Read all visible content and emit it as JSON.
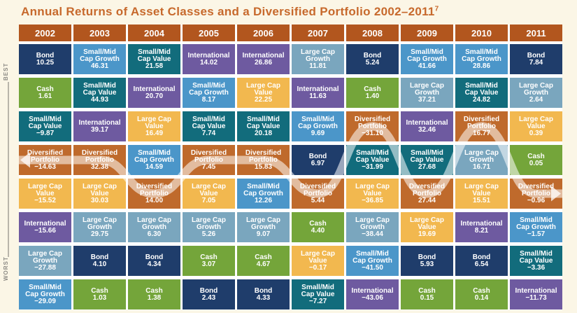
{
  "title": "Annual Returns of Asset Classes and a Diversified Portfolio 2002–2011",
  "title_footnote": "7",
  "side": {
    "best": "BEST",
    "worst": "WORST"
  },
  "colors": {
    "Bond": "#1f3d6b",
    "Cash": "#74a53a",
    "Small/Mid Cap Value": "#126c7c",
    "Small/Mid Cap Growth": "#4b96c9",
    "International": "#6e5aa0",
    "Large Cap Value": "#f2b84f",
    "Large Cap Growth": "#7aa6be",
    "Diversified Portfolio": "#bf6a2c"
  },
  "chart_data": {
    "type": "table",
    "title": "Annual Returns of Asset Classes and a Diversified Portfolio 2002–2011",
    "rank_labels": [
      "BEST",
      "WORST"
    ],
    "years": [
      {
        "year": "2002",
        "cells": [
          {
            "name": "Bond",
            "value": "10.25"
          },
          {
            "name": "Cash",
            "value": "1.61"
          },
          {
            "name": "Small/Mid Cap Value",
            "value": "−9.87"
          },
          {
            "name": "Diversified Portfolio",
            "value": "−14.63"
          },
          {
            "name": "Large Cap Value",
            "value": "−15.52"
          },
          {
            "name": "International",
            "value": "−15.66"
          },
          {
            "name": "Large Cap Growth",
            "value": "−27.88"
          },
          {
            "name": "Small/Mid Cap Growth",
            "value": "−29.09"
          }
        ]
      },
      {
        "year": "2003",
        "cells": [
          {
            "name": "Small/Mid Cap Growth",
            "value": "46.31"
          },
          {
            "name": "Small/Mid Cap Value",
            "value": "44.93"
          },
          {
            "name": "International",
            "value": "39.17"
          },
          {
            "name": "Diversified Portfolio",
            "value": "32.38"
          },
          {
            "name": "Large Cap Value",
            "value": "30.03"
          },
          {
            "name": "Large Cap Growth",
            "value": "29.75"
          },
          {
            "name": "Bond",
            "value": "4.10"
          },
          {
            "name": "Cash",
            "value": "1.03"
          }
        ]
      },
      {
        "year": "2004",
        "cells": [
          {
            "name": "Small/Mid Cap Value",
            "value": "21.58"
          },
          {
            "name": "International",
            "value": "20.70"
          },
          {
            "name": "Large Cap Value",
            "value": "16.49"
          },
          {
            "name": "Small/Mid Cap Growth",
            "value": "14.59"
          },
          {
            "name": "Diversified Portfolio",
            "value": "14.00"
          },
          {
            "name": "Large Cap Growth",
            "value": "6.30"
          },
          {
            "name": "Bond",
            "value": "4.34"
          },
          {
            "name": "Cash",
            "value": "1.38"
          }
        ]
      },
      {
        "year": "2005",
        "cells": [
          {
            "name": "International",
            "value": "14.02"
          },
          {
            "name": "Small/Mid Cap Growth",
            "value": "8.17"
          },
          {
            "name": "Small/Mid Cap Value",
            "value": "7.74"
          },
          {
            "name": "Diversified Portfolio",
            "value": "7.45"
          },
          {
            "name": "Large Cap Value",
            "value": "7.05"
          },
          {
            "name": "Large Cap Growth",
            "value": "5.26"
          },
          {
            "name": "Cash",
            "value": "3.07"
          },
          {
            "name": "Bond",
            "value": "2.43"
          }
        ]
      },
      {
        "year": "2006",
        "cells": [
          {
            "name": "International",
            "value": "26.86"
          },
          {
            "name": "Large Cap Value",
            "value": "22.25"
          },
          {
            "name": "Small/Mid Cap Value",
            "value": "20.18"
          },
          {
            "name": "Diversified Portfolio",
            "value": "15.83"
          },
          {
            "name": "Small/Mid Cap Growth",
            "value": "12.26"
          },
          {
            "name": "Large Cap Growth",
            "value": "9.07"
          },
          {
            "name": "Cash",
            "value": "4.67"
          },
          {
            "name": "Bond",
            "value": "4.33"
          }
        ]
      },
      {
        "year": "2007",
        "cells": [
          {
            "name": "Large Cap Growth",
            "value": "11.81"
          },
          {
            "name": "International",
            "value": "11.63"
          },
          {
            "name": "Small/Mid Cap Growth",
            "value": "9.69"
          },
          {
            "name": "Bond",
            "value": "6.97"
          },
          {
            "name": "Diversified Portfolio",
            "value": "5.44"
          },
          {
            "name": "Cash",
            "value": "4.40"
          },
          {
            "name": "Large Cap Value",
            "value": "−0.17"
          },
          {
            "name": "Small/Mid Cap Value",
            "value": "−7.27"
          }
        ]
      },
      {
        "year": "2008",
        "cells": [
          {
            "name": "Bond",
            "value": "5.24"
          },
          {
            "name": "Cash",
            "value": "1.40"
          },
          {
            "name": "Diversified Portfolio",
            "value": "−31.10"
          },
          {
            "name": "Small/Mid Cap Value",
            "value": "−31.99"
          },
          {
            "name": "Large Cap Value",
            "value": "−36.85"
          },
          {
            "name": "Large Cap Growth",
            "value": "−38.44"
          },
          {
            "name": "Small/Mid Cap Growth",
            "value": "−41.50"
          },
          {
            "name": "International",
            "value": "−43.06"
          }
        ]
      },
      {
        "year": "2009",
        "cells": [
          {
            "name": "Small/Mid Cap Growth",
            "value": "41.66"
          },
          {
            "name": "Large Cap Growth",
            "value": "37.21"
          },
          {
            "name": "International",
            "value": "32.46"
          },
          {
            "name": "Small/Mid Cap Value",
            "value": "27.68"
          },
          {
            "name": "Diversified Portfolio",
            "value": "27.44"
          },
          {
            "name": "Large Cap Value",
            "value": "19.69"
          },
          {
            "name": "Bond",
            "value": "5.93"
          },
          {
            "name": "Cash",
            "value": "0.15"
          }
        ]
      },
      {
        "year": "2010",
        "cells": [
          {
            "name": "Small/Mid Cap Growth",
            "value": "28.86"
          },
          {
            "name": "Small/Mid Cap Value",
            "value": "24.82"
          },
          {
            "name": "Diversified Portfolio",
            "value": "16.77"
          },
          {
            "name": "Large Cap Growth",
            "value": "16.71"
          },
          {
            "name": "Large Cap Value",
            "value": "15.51"
          },
          {
            "name": "International",
            "value": "8.21"
          },
          {
            "name": "Bond",
            "value": "6.54"
          },
          {
            "name": "Cash",
            "value": "0.14"
          }
        ]
      },
      {
        "year": "2011",
        "cells": [
          {
            "name": "Bond",
            "value": "7.84"
          },
          {
            "name": "Large Cap Growth",
            "value": "2.64"
          },
          {
            "name": "Large Cap Value",
            "value": "0.39"
          },
          {
            "name": "Cash",
            "value": "0.05"
          },
          {
            "name": "Diversified Portfolio",
            "value": "−0.96"
          },
          {
            "name": "Small/Mid Cap Growth",
            "value": "−1.57"
          },
          {
            "name": "Small/Mid Cap Value",
            "value": "−3.36"
          },
          {
            "name": "International",
            "value": "−11.73"
          }
        ]
      }
    ]
  }
}
